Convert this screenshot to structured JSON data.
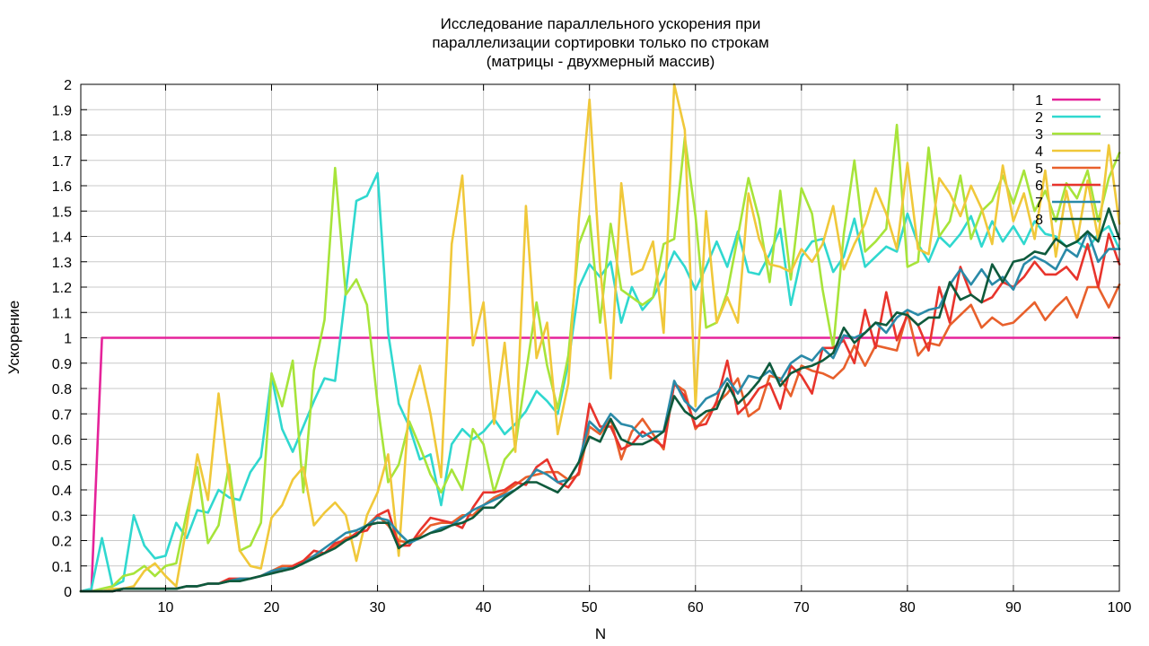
{
  "chart_data": {
    "type": "line",
    "title": [
      "Исследование параллельного ускорения при",
      "параллелизации сортировки только по строкам",
      "(матрицы - двухмерный массив)"
    ],
    "xlabel": "N",
    "ylabel": "Ускорение",
    "xlim": [
      2,
      100
    ],
    "ylim": [
      0,
      2
    ],
    "xticks": [
      10,
      20,
      30,
      40,
      50,
      60,
      70,
      80,
      90,
      100
    ],
    "yticks": [
      "0",
      "0.1",
      "0.2",
      "0.3",
      "0.4",
      "0.5",
      "0.6",
      "0.7",
      "0.8",
      "0.9",
      "1",
      "1.1",
      "1.2",
      "1.3",
      "1.4",
      "1.5",
      "1.6",
      "1.7",
      "1.8",
      "1.9",
      "2"
    ],
    "grid": true,
    "legend_position": "top-right",
    "x": [
      2,
      3,
      4,
      5,
      6,
      7,
      8,
      9,
      10,
      11,
      12,
      13,
      14,
      15,
      16,
      17,
      18,
      19,
      20,
      21,
      22,
      23,
      24,
      25,
      26,
      27,
      28,
      29,
      30,
      31,
      32,
      33,
      34,
      35,
      36,
      37,
      38,
      39,
      40,
      41,
      42,
      43,
      44,
      45,
      46,
      47,
      48,
      49,
      50,
      51,
      52,
      53,
      54,
      55,
      56,
      57,
      58,
      59,
      60,
      61,
      62,
      63,
      64,
      65,
      66,
      67,
      68,
      69,
      70,
      71,
      72,
      73,
      74,
      75,
      76,
      77,
      78,
      79,
      80,
      81,
      82,
      83,
      84,
      85,
      86,
      87,
      88,
      89,
      90,
      91,
      92,
      93,
      94,
      95,
      96,
      97,
      98,
      99,
      100
    ],
    "series": [
      {
        "name": "1",
        "color": "#e5239a",
        "values": [
          0,
          0,
          1,
          1,
          1,
          1,
          1,
          1,
          1,
          1,
          1,
          1,
          1,
          1,
          1,
          1,
          1,
          1,
          1,
          1,
          1,
          1,
          1,
          1,
          1,
          1,
          1,
          1,
          1,
          1,
          1,
          1,
          1,
          1,
          1,
          1,
          1,
          1,
          1,
          1,
          1,
          1,
          1,
          1,
          1,
          1,
          1,
          1,
          1,
          1,
          1,
          1,
          1,
          1,
          1,
          1,
          1,
          1,
          1,
          1,
          1,
          1,
          1,
          1,
          1,
          1,
          1,
          1,
          1,
          1,
          1,
          1,
          1,
          1,
          1,
          1,
          1,
          1,
          1,
          1,
          1,
          1,
          1,
          1,
          1,
          1,
          1,
          1,
          1,
          1,
          1,
          1,
          1,
          1,
          1,
          1,
          1,
          1,
          1
        ]
      },
      {
        "name": "2",
        "color": "#30d8cf",
        "values": [
          0,
          0.01,
          0.21,
          0.02,
          0.04,
          0.3,
          0.18,
          0.13,
          0.14,
          0.27,
          0.21,
          0.32,
          0.31,
          0.4,
          0.37,
          0.36,
          0.47,
          0.53,
          0.85,
          0.64,
          0.55,
          0.65,
          0.75,
          0.84,
          0.83,
          1.18,
          1.54,
          1.56,
          1.65,
          1.02,
          0.74,
          0.65,
          0.52,
          0.54,
          0.34,
          0.58,
          0.64,
          0.6,
          0.63,
          0.68,
          0.62,
          0.66,
          0.71,
          0.79,
          0.75,
          0.7,
          0.9,
          1.2,
          1.29,
          1.24,
          1.3,
          1.06,
          1.2,
          1.11,
          1.16,
          1.24,
          1.34,
          1.28,
          1.19,
          1.28,
          1.38,
          1.28,
          1.42,
          1.26,
          1.25,
          1.33,
          1.43,
          1.13,
          1.32,
          1.38,
          1.39,
          1.26,
          1.32,
          1.47,
          1.28,
          1.32,
          1.36,
          1.34,
          1.49,
          1.37,
          1.3,
          1.4,
          1.36,
          1.41,
          1.48,
          1.36,
          1.46,
          1.38,
          1.44,
          1.37,
          1.46,
          1.41,
          1.4,
          1.36,
          1.38,
          1.35,
          1.41,
          1.44,
          1.35
        ]
      },
      {
        "name": "3",
        "color": "#a7e43a",
        "values": [
          0,
          0,
          0.01,
          0.02,
          0.06,
          0.07,
          0.1,
          0.06,
          0.1,
          0.11,
          0.31,
          0.49,
          0.19,
          0.26,
          0.5,
          0.16,
          0.18,
          0.27,
          0.86,
          0.73,
          0.91,
          0.39,
          0.87,
          1.07,
          1.67,
          1.17,
          1.23,
          1.13,
          0.74,
          0.43,
          0.5,
          0.67,
          0.57,
          0.46,
          0.39,
          0.48,
          0.4,
          0.64,
          0.58,
          0.39,
          0.52,
          0.57,
          0.86,
          1.14,
          0.89,
          0.72,
          0.93,
          1.37,
          1.48,
          1.06,
          1.45,
          1.19,
          1.16,
          1.13,
          1.16,
          1.37,
          1.39,
          1.79,
          1.48,
          1.04,
          1.06,
          1.18,
          1.4,
          1.63,
          1.47,
          1.22,
          1.58,
          1.23,
          1.59,
          1.49,
          1.19,
          0.96,
          1.41,
          1.7,
          1.34,
          1.38,
          1.43,
          1.84,
          1.28,
          1.3,
          1.75,
          1.4,
          1.46,
          1.64,
          1.39,
          1.5,
          1.54,
          1.64,
          1.53,
          1.66,
          1.5,
          1.58,
          1.46,
          1.61,
          1.55,
          1.66,
          1.46,
          1.63,
          1.73
        ]
      },
      {
        "name": "4",
        "color": "#f0c83a",
        "values": [
          0,
          0,
          0,
          0.01,
          0.01,
          0.02,
          0.08,
          0.11,
          0.06,
          0.02,
          0.26,
          0.54,
          0.36,
          0.78,
          0.44,
          0.16,
          0.1,
          0.09,
          0.29,
          0.34,
          0.44,
          0.49,
          0.26,
          0.31,
          0.35,
          0.3,
          0.12,
          0.3,
          0.39,
          0.54,
          0.14,
          0.75,
          0.89,
          0.7,
          0.45,
          1.37,
          1.64,
          0.97,
          1.14,
          0.66,
          0.98,
          0.55,
          1.52,
          0.92,
          1.06,
          0.62,
          0.82,
          1.47,
          1.94,
          1.28,
          0.84,
          1.61,
          1.25,
          1.27,
          1.38,
          1.02,
          2.05,
          1.82,
          0.73,
          1.5,
          1.06,
          1.16,
          1.06,
          1.57,
          1.39,
          1.29,
          1.28,
          1.26,
          1.35,
          1.3,
          1.37,
          1.52,
          1.27,
          1.37,
          1.45,
          1.59,
          1.49,
          1.35,
          1.69,
          1.35,
          1.33,
          1.63,
          1.57,
          1.48,
          1.6,
          1.51,
          1.37,
          1.68,
          1.46,
          1.57,
          1.39,
          1.66,
          1.32,
          1.58,
          1.38,
          1.62,
          1.39,
          1.76,
          1.45
        ]
      },
      {
        "name": "5",
        "color": "#e8602c",
        "values": [
          0,
          0,
          0,
          0,
          0.01,
          0.01,
          0.01,
          0.01,
          0.01,
          0.01,
          0.02,
          0.02,
          0.03,
          0.03,
          0.04,
          0.05,
          0.05,
          0.06,
          0.08,
          0.1,
          0.1,
          0.12,
          0.14,
          0.15,
          0.18,
          0.21,
          0.22,
          0.26,
          0.3,
          0.26,
          0.2,
          0.19,
          0.22,
          0.26,
          0.27,
          0.27,
          0.3,
          0.3,
          0.34,
          0.37,
          0.39,
          0.42,
          0.45,
          0.46,
          0.47,
          0.47,
          0.44,
          0.46,
          0.65,
          0.62,
          0.68,
          0.52,
          0.63,
          0.68,
          0.62,
          0.56,
          0.82,
          0.79,
          0.64,
          0.69,
          0.74,
          0.78,
          0.84,
          0.69,
          0.72,
          0.85,
          0.84,
          0.77,
          0.89,
          0.87,
          0.86,
          0.84,
          0.88,
          0.97,
          0.89,
          0.97,
          0.96,
          0.95,
          1.1,
          0.93,
          0.98,
          0.97,
          1.05,
          1.09,
          1.13,
          1.04,
          1.08,
          1.05,
          1.06,
          1.1,
          1.14,
          1.07,
          1.12,
          1.16,
          1.08,
          1.2,
          1.2,
          1.12,
          1.21
        ]
      },
      {
        "name": "6",
        "color": "#e8342c",
        "values": [
          0,
          0,
          0,
          0,
          0.01,
          0.01,
          0.01,
          0.01,
          0.01,
          0.01,
          0.02,
          0.02,
          0.03,
          0.03,
          0.05,
          0.05,
          0.05,
          0.06,
          0.08,
          0.08,
          0.1,
          0.12,
          0.16,
          0.15,
          0.19,
          0.2,
          0.23,
          0.24,
          0.3,
          0.32,
          0.18,
          0.18,
          0.24,
          0.29,
          0.28,
          0.27,
          0.25,
          0.33,
          0.39,
          0.39,
          0.4,
          0.43,
          0.42,
          0.49,
          0.52,
          0.43,
          0.41,
          0.47,
          0.74,
          0.65,
          0.65,
          0.56,
          0.58,
          0.63,
          0.6,
          0.57,
          0.82,
          0.77,
          0.65,
          0.66,
          0.75,
          0.91,
          0.7,
          0.74,
          0.8,
          0.82,
          0.72,
          0.89,
          0.85,
          0.78,
          0.96,
          0.96,
          0.99,
          0.9,
          1.11,
          0.96,
          1.18,
          0.99,
          1.09,
          1.05,
          0.95,
          1.2,
          1.06,
          1.28,
          1.17,
          1.14,
          1.16,
          1.22,
          1.2,
          1.24,
          1.3,
          1.25,
          1.25,
          1.28,
          1.23,
          1.37,
          1.2,
          1.41,
          1.29
        ]
      },
      {
        "name": "7",
        "color": "#2a8aa8",
        "values": [
          0,
          0,
          0,
          0,
          0.01,
          0.01,
          0.01,
          0.01,
          0.01,
          0.01,
          0.02,
          0.02,
          0.03,
          0.03,
          0.04,
          0.05,
          0.05,
          0.06,
          0.08,
          0.09,
          0.09,
          0.11,
          0.14,
          0.17,
          0.2,
          0.23,
          0.24,
          0.26,
          0.29,
          0.28,
          0.23,
          0.19,
          0.21,
          0.23,
          0.25,
          0.26,
          0.29,
          0.32,
          0.34,
          0.36,
          0.38,
          0.4,
          0.43,
          0.48,
          0.46,
          0.43,
          0.44,
          0.51,
          0.67,
          0.63,
          0.7,
          0.66,
          0.65,
          0.61,
          0.63,
          0.63,
          0.83,
          0.75,
          0.71,
          0.76,
          0.78,
          0.84,
          0.78,
          0.85,
          0.84,
          0.87,
          0.83,
          0.9,
          0.93,
          0.91,
          0.96,
          0.92,
          1.01,
          1.0,
          1.02,
          1.06,
          1.02,
          1.08,
          1.11,
          1.09,
          1.11,
          1.12,
          1.21,
          1.27,
          1.21,
          1.27,
          1.21,
          1.24,
          1.19,
          1.29,
          1.32,
          1.3,
          1.27,
          1.35,
          1.32,
          1.42,
          1.3,
          1.35,
          1.35
        ]
      },
      {
        "name": "8",
        "color": "#0e5a3c",
        "values": [
          0,
          0,
          0,
          0,
          0.01,
          0.01,
          0.01,
          0.01,
          0.01,
          0.01,
          0.02,
          0.02,
          0.03,
          0.03,
          0.04,
          0.04,
          0.05,
          0.06,
          0.07,
          0.08,
          0.09,
          0.11,
          0.13,
          0.15,
          0.17,
          0.2,
          0.22,
          0.26,
          0.27,
          0.27,
          0.17,
          0.2,
          0.21,
          0.23,
          0.24,
          0.26,
          0.27,
          0.29,
          0.33,
          0.33,
          0.37,
          0.4,
          0.43,
          0.43,
          0.41,
          0.39,
          0.44,
          0.51,
          0.61,
          0.59,
          0.68,
          0.6,
          0.58,
          0.58,
          0.6,
          0.63,
          0.77,
          0.71,
          0.68,
          0.71,
          0.72,
          0.82,
          0.74,
          0.78,
          0.83,
          0.9,
          0.81,
          0.86,
          0.88,
          0.89,
          0.91,
          0.94,
          1.04,
          0.98,
          1.02,
          1.06,
          1.05,
          1.1,
          1.09,
          1.05,
          1.08,
          1.08,
          1.22,
          1.15,
          1.17,
          1.14,
          1.29,
          1.22,
          1.3,
          1.31,
          1.34,
          1.33,
          1.39,
          1.36,
          1.38,
          1.42,
          1.38,
          1.51,
          1.39
        ]
      }
    ]
  }
}
